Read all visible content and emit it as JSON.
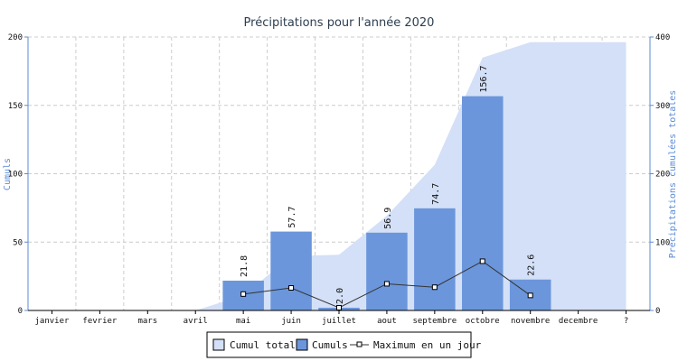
{
  "chart_data": {
    "type": "bar",
    "title": "Précipitations pour l'année 2020",
    "ylabel": "Cumuls",
    "y2label": "Précipitations cumulées totales",
    "categories": [
      "janvier",
      "fevrier",
      "mars",
      "avril",
      "mai",
      "juin",
      "juillet",
      "aout",
      "septembre",
      "octobre",
      "novembre",
      "decembre",
      "?"
    ],
    "ylim": [
      0,
      200
    ],
    "y2lim": [
      0,
      400
    ],
    "yticks": [
      "0",
      "50",
      "100",
      "150",
      "200"
    ],
    "y2ticks": [
      "0",
      "100",
      "200",
      "300",
      "400"
    ],
    "grid": true,
    "legend_position": "bottom",
    "series": [
      {
        "name": "Cumul total",
        "type": "area",
        "axis": "right",
        "color": "#d3e0f7",
        "values": [
          0,
          0,
          0,
          0,
          21.8,
          79.5,
          81.5,
          138.4,
          213.1,
          369.8,
          392.4,
          392.4,
          392.4
        ]
      },
      {
        "name": "Cumuls",
        "type": "bar",
        "axis": "left",
        "color": "#6b96db",
        "values": [
          0,
          0,
          0,
          0,
          21.8,
          57.7,
          2.0,
          56.9,
          74.7,
          156.7,
          22.6,
          0,
          0
        ],
        "labels": [
          "",
          "",
          "",
          "",
          "21.8",
          "57.7",
          "2.0",
          "56.9",
          "74.7",
          "156.7",
          "22.6",
          "",
          ""
        ]
      },
      {
        "name": "Maximum en un jour",
        "type": "line",
        "axis": "left",
        "color": "#333333",
        "values": [
          null,
          null,
          null,
          null,
          12,
          16.5,
          2,
          19.5,
          17,
          36,
          11,
          null,
          null
        ]
      }
    ]
  }
}
